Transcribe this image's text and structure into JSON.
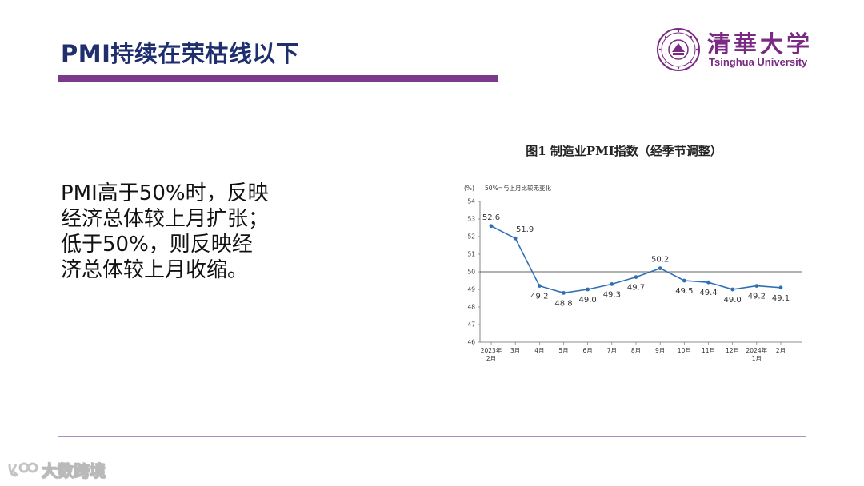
{
  "slide": {
    "title": "PMI持续在荣枯线以下",
    "body_lines": [
      "PMI高于50%时，反映",
      "经济总体较上月扩张；",
      "低于50%，则反映经",
      "济总体较上月收缩。"
    ]
  },
  "logo": {
    "cn": "清華大学",
    "en": "Tsinghua University"
  },
  "watermark": {
    "text": "大数跨境"
  },
  "colors": {
    "title": "#1f2f6e",
    "accent_purple": "#7b3a8a",
    "line": "#2f6fb5"
  },
  "chart_data": {
    "type": "line",
    "title": "图1  制造业PMI指数（经季节调整）",
    "ylabel": "(%)",
    "note": "50%=与上月比较无变化",
    "ylim": [
      46,
      54
    ],
    "yticks": [
      46,
      47,
      48,
      49,
      50,
      51,
      52,
      53,
      54
    ],
    "reference_line": 50,
    "categories": [
      [
        "2023年",
        "2月"
      ],
      [
        "3月"
      ],
      [
        "4月"
      ],
      [
        "5月"
      ],
      [
        "6月"
      ],
      [
        "7月"
      ],
      [
        "8月"
      ],
      [
        "9月"
      ],
      [
        "10月"
      ],
      [
        "11月"
      ],
      [
        "12月"
      ],
      [
        "2024年",
        "1月"
      ],
      [
        "2月"
      ]
    ],
    "values": [
      52.6,
      51.9,
      49.2,
      48.8,
      49.0,
      49.3,
      49.7,
      50.2,
      49.5,
      49.4,
      49.0,
      49.2,
      49.1
    ],
    "data_labels": [
      "52.6",
      "51.9",
      "49.2",
      "48.8",
      "49.0",
      "49.3",
      "49.7",
      "50.2",
      "49.5",
      "49.4",
      "49.0",
      "49.2",
      "49.1"
    ],
    "grid": false
  }
}
